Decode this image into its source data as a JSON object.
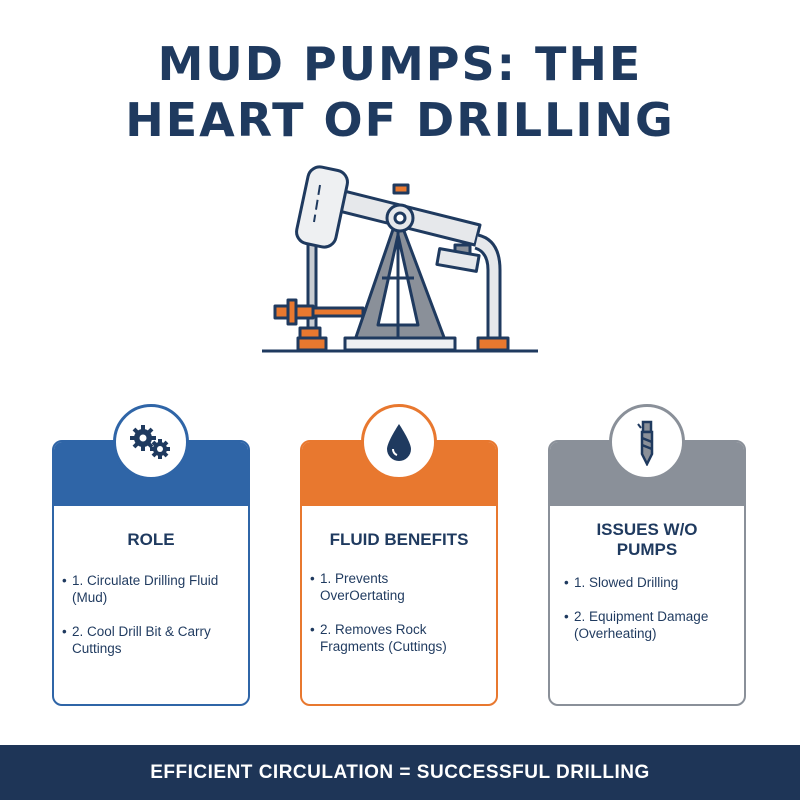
{
  "title": {
    "line1": "MUD PUMPS: THE",
    "line2": "HEART OF DRILLING"
  },
  "colors": {
    "navy": "#1f3a5f",
    "blue": "#2f65a7",
    "orange": "#e8782f",
    "gray": "#8a9099",
    "footer": "#1e3557"
  },
  "illustration": {
    "icon": "pumpjack-icon"
  },
  "cards": [
    {
      "icon": "gears-icon",
      "heading": "ROLE",
      "items": [
        "1. Circulate Drilling Fluid (Mud)",
        "2. Cool Drill Bit & Carry Cuttings"
      ]
    },
    {
      "icon": "water-drop-icon",
      "heading": "FLUID BENEFITS",
      "items": [
        "1. Prevents OverOertating",
        "2. Removes Rock Fragments (Cuttings)"
      ]
    },
    {
      "icon": "drill-bit-icon",
      "heading": "ISSUES W/O PUMPS",
      "items": [
        "1. Slowed Drilling",
        "2. Equipment Damage (Overheating)"
      ]
    }
  ],
  "footer": "EFFICIENT CIRCULATION = SUCCESSFUL DRILLING"
}
